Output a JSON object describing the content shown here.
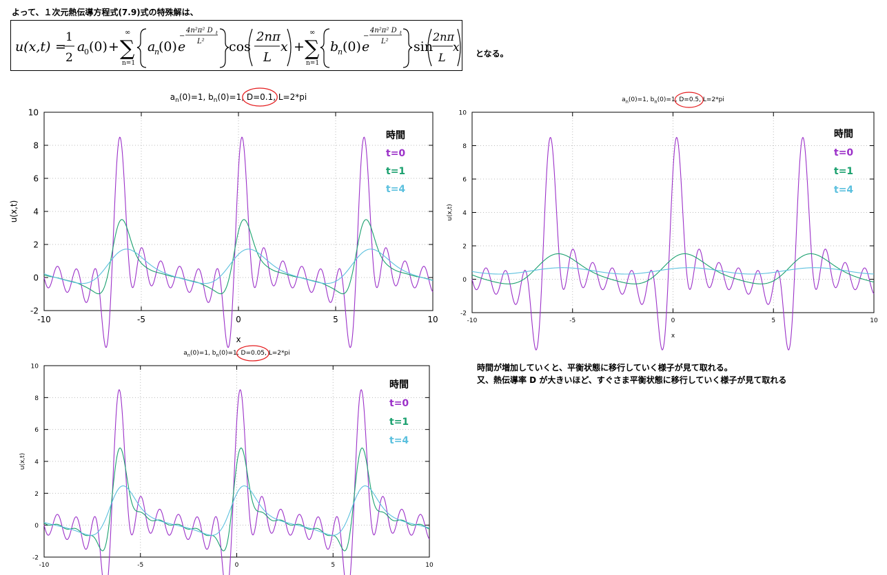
{
  "intro_text": "よって、１次元熱伝導方程式(7.9)式の特殊解は、",
  "equation": {
    "lhs": "u(x,t)",
    "equals": "=",
    "half_num": "1",
    "half_den": "2",
    "a0": "a",
    "a0_sub": "0",
    "zero_arg": "(0)",
    "plus": "+",
    "sum_top": "∞",
    "sum_sym": "∑",
    "sum_bottom": "n=1",
    "an": "a",
    "n_sub": "n",
    "bn": "b",
    "e": "e",
    "exp_num": "4n²π² D",
    "exp_t": "t",
    "exp_den": "L²",
    "minus": "−",
    "cos": "cos",
    "sin": "sin",
    "frac_num": "2nπ",
    "frac_den": "L",
    "x": "x"
  },
  "eq_tail": "となる。",
  "conclusion": {
    "line1": "時間が増加していくと、平衡状態に移行していく様子が見て取れる。",
    "line2": "又、熱伝導率 D が大きいほど、すぐさま平衡状態に移行していく様子が見て取れる"
  },
  "colors": {
    "t0": "#9b30c8",
    "t1": "#1aa06e",
    "t4": "#5bc0de",
    "circle": "#e41a1c",
    "grid": "#bbbbbb"
  },
  "chart_data": [
    {
      "type": "line",
      "title": "a_n(0)=1, b_n(0)=1, D=0.1, L=2*pi",
      "title_parts": {
        "a": "a",
        "b": "b",
        "sub": "n",
        "p1": "(0)=1, ",
        "p2": "(0)=1, ",
        "d": "D=0.1",
        "rest": ", L=2*pi"
      },
      "D": 0.1,
      "xlabel": "x",
      "ylabel": "u(x,t)",
      "xlim": [
        -10,
        10
      ],
      "ylim": [
        -2,
        10
      ],
      "xticks": [
        -10,
        -5,
        0,
        5,
        10
      ],
      "yticks": [
        -2,
        0,
        2,
        4,
        6,
        8,
        10
      ],
      "legend_title": "時間",
      "series": [
        {
          "name": "t=0",
          "t": 0
        },
        {
          "name": "t=1",
          "t": 1
        },
        {
          "name": "t=4",
          "t": 4
        }
      ]
    },
    {
      "type": "line",
      "title": "a_n(0)=1, b_n(0)=1, D=0.5, L=2*pi",
      "title_parts": {
        "a": "a",
        "b": "b",
        "sub": "n",
        "p1": "(0)=1, ",
        "p2": "(0)=1, ",
        "d": "D=0.5",
        "rest": ", L=2*pi"
      },
      "D": 0.5,
      "xlabel": "x",
      "ylabel": "u(x,t)",
      "xlim": [
        -10,
        10
      ],
      "ylim": [
        -2,
        10
      ],
      "xticks": [
        -10,
        -5,
        0,
        5,
        10
      ],
      "yticks": [
        -2,
        0,
        2,
        4,
        6,
        8,
        10
      ],
      "legend_title": "時間",
      "series": [
        {
          "name": "t=0",
          "t": 0
        },
        {
          "name": "t=1",
          "t": 1
        },
        {
          "name": "t=4",
          "t": 4
        }
      ]
    },
    {
      "type": "line",
      "title": "a_n(0)=1, b_n(0)=1, D=0.05, L=2*pi",
      "title_parts": {
        "a": "a",
        "b": "b",
        "sub": "n",
        "p1": "(0)=1, ",
        "p2": "(0)=1, ",
        "d": "D=0.05",
        "rest": ", L=2*pi"
      },
      "D": 0.05,
      "xlabel": "",
      "ylabel": "u(x,t)",
      "xlim": [
        -10,
        10
      ],
      "ylim": [
        -2,
        10
      ],
      "xticks": [
        -10,
        -5,
        0,
        5,
        10
      ],
      "yticks": [
        -2,
        0,
        2,
        4,
        6,
        8,
        10
      ],
      "legend_title": "時間",
      "series": [
        {
          "name": "t=0",
          "t": 0
        },
        {
          "name": "t=1",
          "t": 1
        },
        {
          "name": "t=4",
          "t": 4
        }
      ]
    }
  ]
}
